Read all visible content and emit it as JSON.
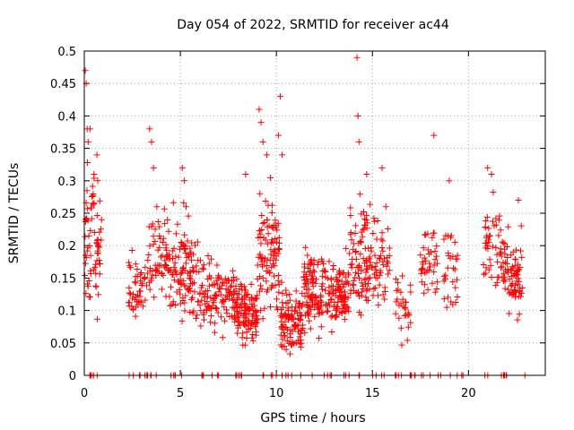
{
  "chart_data": {
    "type": "scatter",
    "title": "Day 054 of 2022, SRMTID for receiver ac44",
    "xlabel": "GPS time / hours",
    "ylabel": "SRMTID / TECUs",
    "xlim": [
      0,
      24
    ],
    "ylim": [
      0,
      0.5
    ],
    "grid": true,
    "marker": "+",
    "series_color": "#ff0000",
    "x_ticks": [
      0,
      5,
      10,
      15,
      20
    ],
    "x_tick_labels": [
      "0",
      "5",
      "10",
      "15",
      "20"
    ],
    "y_ticks": [
      0,
      0.05,
      0.1,
      0.15,
      0.2,
      0.25,
      0.3,
      0.35,
      0.4,
      0.45,
      0.5
    ],
    "y_tick_labels": [
      "0",
      "0.05",
      "0.1",
      "0.15",
      "0.2",
      "0.25",
      "0.3",
      "0.35",
      "0.4",
      "0.45",
      "0.5"
    ],
    "clusters": [
      {
        "x0": 0.0,
        "x1": 0.9,
        "ylo": 0.06,
        "yhi": 0.36,
        "n": 70,
        "zeros": 6
      },
      {
        "x0": 2.3,
        "x1": 3.2,
        "ylo": 0.05,
        "yhi": 0.22,
        "n": 45,
        "zeros": 6
      },
      {
        "x0": 3.2,
        "x1": 4.4,
        "ylo": 0.07,
        "yhi": 0.3,
        "n": 65,
        "zeros": 5
      },
      {
        "x0": 4.4,
        "x1": 6.0,
        "ylo": 0.05,
        "yhi": 0.27,
        "n": 110,
        "zeros": 6
      },
      {
        "x0": 6.0,
        "x1": 7.8,
        "ylo": 0.05,
        "yhi": 0.2,
        "n": 110,
        "zeros": 6
      },
      {
        "x0": 7.8,
        "x1": 9.0,
        "ylo": 0.03,
        "yhi": 0.17,
        "n": 120,
        "zeros": 4
      },
      {
        "x0": 9.0,
        "x1": 10.2,
        "ylo": 0.05,
        "yhi": 0.33,
        "n": 100,
        "zeros": 4
      },
      {
        "x0": 10.2,
        "x1": 11.4,
        "ylo": 0.02,
        "yhi": 0.15,
        "n": 110,
        "zeros": 5
      },
      {
        "x0": 11.4,
        "x1": 12.6,
        "ylo": 0.05,
        "yhi": 0.22,
        "n": 110,
        "zeros": 4
      },
      {
        "x0": 12.6,
        "x1": 13.8,
        "ylo": 0.04,
        "yhi": 0.2,
        "n": 100,
        "zeros": 4
      },
      {
        "x0": 13.8,
        "x1": 14.9,
        "ylo": 0.06,
        "yhi": 0.3,
        "n": 90,
        "zeros": 3
      },
      {
        "x0": 14.9,
        "x1": 15.9,
        "ylo": 0.07,
        "yhi": 0.26,
        "n": 50,
        "zeros": 4
      },
      {
        "x0": 16.2,
        "x1": 17.0,
        "ylo": 0.04,
        "yhi": 0.17,
        "n": 30,
        "zeros": 8
      },
      {
        "x0": 17.5,
        "x1": 18.4,
        "ylo": 0.1,
        "yhi": 0.26,
        "n": 40,
        "zeros": 5
      },
      {
        "x0": 18.7,
        "x1": 19.5,
        "ylo": 0.06,
        "yhi": 0.28,
        "n": 30,
        "zeros": 4
      },
      {
        "x0": 20.7,
        "x1": 21.7,
        "ylo": 0.1,
        "yhi": 0.3,
        "n": 45,
        "zeros": 4
      },
      {
        "x0": 21.7,
        "x1": 22.8,
        "ylo": 0.06,
        "yhi": 0.25,
        "n": 80,
        "zeros": 6
      }
    ],
    "spikes": [
      [
        0.05,
        0.47
      ],
      [
        0.1,
        0.45
      ],
      [
        0.15,
        0.38
      ],
      [
        0.2,
        0.36
      ],
      [
        0.3,
        0.38
      ],
      [
        0.5,
        0.31
      ],
      [
        0.7,
        0.3
      ],
      [
        3.4,
        0.38
      ],
      [
        3.5,
        0.36
      ],
      [
        3.6,
        0.32
      ],
      [
        5.1,
        0.32
      ],
      [
        5.2,
        0.3
      ],
      [
        5.3,
        0.26
      ],
      [
        8.4,
        0.31
      ],
      [
        9.1,
        0.41
      ],
      [
        9.2,
        0.39
      ],
      [
        9.3,
        0.36
      ],
      [
        9.5,
        0.34
      ],
      [
        10.2,
        0.43
      ],
      [
        10.1,
        0.37
      ],
      [
        10.3,
        0.34
      ],
      [
        14.2,
        0.49
      ],
      [
        14.25,
        0.4
      ],
      [
        14.3,
        0.36
      ],
      [
        14.7,
        0.31
      ],
      [
        15.5,
        0.32
      ],
      [
        18.2,
        0.37
      ],
      [
        19.0,
        0.3
      ],
      [
        21.0,
        0.32
      ],
      [
        21.2,
        0.31
      ],
      [
        22.6,
        0.27
      ],
      [
        15.7,
        0.26
      ]
    ]
  }
}
